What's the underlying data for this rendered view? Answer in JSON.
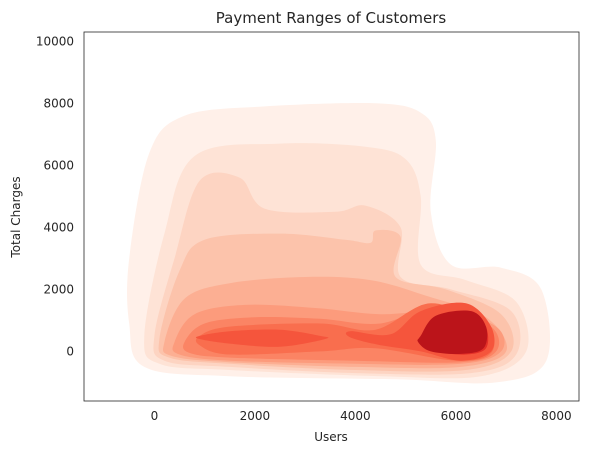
{
  "chart_data": {
    "type": "kde-contour",
    "title": "Payment Ranges of Customers",
    "xlabel": "Users",
    "ylabel": "Total Charges",
    "xlim": [
      -1400,
      8450
    ],
    "ylim": [
      -1600,
      10300
    ],
    "x_ticks": [
      0,
      2000,
      4000,
      6000,
      8000
    ],
    "y_ticks": [
      0,
      2000,
      4000,
      6000,
      8000,
      10000
    ],
    "grid": false,
    "colormap": "Reds",
    "levels": [
      {
        "level": 1,
        "color": "#fff0e9",
        "outline": [
          [
            -500,
            900
          ],
          [
            -500,
            3000
          ],
          [
            -100,
            6400
          ],
          [
            600,
            7600
          ],
          [
            2200,
            7900
          ],
          [
            4400,
            8000
          ],
          [
            5300,
            7700
          ],
          [
            5600,
            6800
          ],
          [
            5500,
            4500
          ],
          [
            5900,
            2800
          ],
          [
            6900,
            2700
          ],
          [
            7700,
            2000
          ],
          [
            7800,
            -300
          ],
          [
            6800,
            -1000
          ],
          [
            4800,
            -900
          ],
          [
            1500,
            -800
          ],
          [
            -200,
            -500
          ]
        ]
      },
      {
        "level": 2,
        "color": "#fee3d6",
        "outline": [
          [
            -200,
            500
          ],
          [
            200,
            3800
          ],
          [
            800,
            6300
          ],
          [
            2500,
            6700
          ],
          [
            4200,
            6600
          ],
          [
            5000,
            6200
          ],
          [
            5300,
            5000
          ],
          [
            5300,
            2800
          ],
          [
            6200,
            2300
          ],
          [
            7200,
            1600
          ],
          [
            7400,
            0
          ],
          [
            6500,
            -800
          ],
          [
            4500,
            -800
          ],
          [
            1500,
            -600
          ],
          [
            100,
            -400
          ]
        ]
      },
      {
        "level": 3,
        "color": "#fdd4c2",
        "outline": [
          [
            0,
            500
          ],
          [
            400,
            3000
          ],
          [
            900,
            5500
          ],
          [
            1700,
            5600
          ],
          [
            2200,
            4600
          ],
          [
            3600,
            4500
          ],
          [
            4200,
            4700
          ],
          [
            4900,
            4000
          ],
          [
            4900,
            2400
          ],
          [
            5900,
            2000
          ],
          [
            7100,
            1300
          ],
          [
            7200,
            -100
          ],
          [
            6300,
            -700
          ],
          [
            4000,
            -700
          ],
          [
            1500,
            -500
          ],
          [
            200,
            -300
          ]
        ]
      },
      {
        "level": 4,
        "color": "#fcc3ab",
        "outline": [
          [
            100,
            400
          ],
          [
            500,
            2600
          ],
          [
            1000,
            3600
          ],
          [
            2500,
            3800
          ],
          [
            3800,
            3600
          ],
          [
            4300,
            3500
          ],
          [
            4400,
            3900
          ],
          [
            4900,
            3700
          ],
          [
            4800,
            2400
          ],
          [
            5800,
            2000
          ],
          [
            6900,
            1200
          ],
          [
            7100,
            0
          ],
          [
            6200,
            -600
          ],
          [
            4000,
            -600
          ],
          [
            1500,
            -400
          ],
          [
            300,
            -200
          ]
        ]
      },
      {
        "level": 5,
        "color": "#fcaf93",
        "outline": [
          [
            200,
            300
          ],
          [
            600,
            1700
          ],
          [
            1500,
            2200
          ],
          [
            3000,
            2400
          ],
          [
            4300,
            2300
          ],
          [
            5400,
            1800
          ],
          [
            6600,
            1100
          ],
          [
            7000,
            0
          ],
          [
            6100,
            -500
          ],
          [
            4000,
            -500
          ],
          [
            1500,
            -350
          ],
          [
            350,
            -150
          ]
        ]
      },
      {
        "level": 6,
        "color": "#fc9b7c",
        "outline": [
          [
            400,
            300
          ],
          [
            800,
            1200
          ],
          [
            1800,
            1500
          ],
          [
            3200,
            1400
          ],
          [
            4500,
            1200
          ],
          [
            5800,
            1300
          ],
          [
            6800,
            800
          ],
          [
            6900,
            0
          ],
          [
            6100,
            -400
          ],
          [
            4000,
            -400
          ],
          [
            1500,
            -300
          ],
          [
            500,
            -100
          ]
        ]
      },
      {
        "level": 7,
        "color": "#fb8464",
        "outline": [
          [
            600,
            300
          ],
          [
            1000,
            900
          ],
          [
            2000,
            1100
          ],
          [
            3300,
            1050
          ],
          [
            4500,
            900
          ],
          [
            5700,
            1500
          ],
          [
            6700,
            800
          ],
          [
            6800,
            0
          ],
          [
            6100,
            -350
          ],
          [
            4000,
            -300
          ],
          [
            1500,
            -200
          ],
          [
            700,
            -50
          ]
        ]
      },
      {
        "level": 8,
        "color": "#f96e4e",
        "outline": [
          [
            900,
            500
          ],
          [
            1500,
            800
          ],
          [
            3300,
            900
          ],
          [
            4400,
            700
          ],
          [
            5500,
            1550
          ],
          [
            6600,
            800
          ],
          [
            6700,
            -50
          ],
          [
            6000,
            -300
          ],
          [
            4400,
            100
          ],
          [
            3300,
            0
          ],
          [
            1500,
            -100
          ],
          [
            900,
            200
          ]
        ]
      },
      {
        "level": 9,
        "color": "#f5553c",
        "outline": [
          [
            900,
            500
          ],
          [
            1500,
            650
          ],
          [
            2500,
            700
          ],
          [
            3300,
            500
          ],
          [
            3400,
            400
          ],
          [
            2500,
            150
          ],
          [
            1500,
            250
          ],
          [
            900,
            400
          ]
        ]
      },
      {
        "level": 10,
        "color": "#f5553c",
        "outline": [
          [
            3900,
            650
          ],
          [
            4700,
            550
          ],
          [
            5300,
            1300
          ],
          [
            6200,
            1550
          ],
          [
            6700,
            800
          ],
          [
            6700,
            0
          ],
          [
            6100,
            -300
          ],
          [
            5300,
            0
          ],
          [
            4500,
            200
          ],
          [
            3900,
            450
          ]
        ]
      },
      {
        "level": 11,
        "color": "#e32f27",
        "outline": [
          [
            5300,
            500
          ],
          [
            5700,
            1100
          ],
          [
            6300,
            1300
          ],
          [
            6600,
            800
          ],
          [
            6600,
            100
          ],
          [
            6200,
            -100
          ],
          [
            5600,
            0
          ],
          [
            5300,
            300
          ]
        ]
      },
      {
        "level": 12,
        "color": "#bb141a",
        "outline": [
          [
            5300,
            500
          ],
          [
            5600,
            1150
          ],
          [
            6300,
            1300
          ],
          [
            6600,
            800
          ],
          [
            6550,
            100
          ],
          [
            6100,
            -80
          ],
          [
            5500,
            0
          ],
          [
            5250,
            300
          ]
        ]
      }
    ]
  }
}
